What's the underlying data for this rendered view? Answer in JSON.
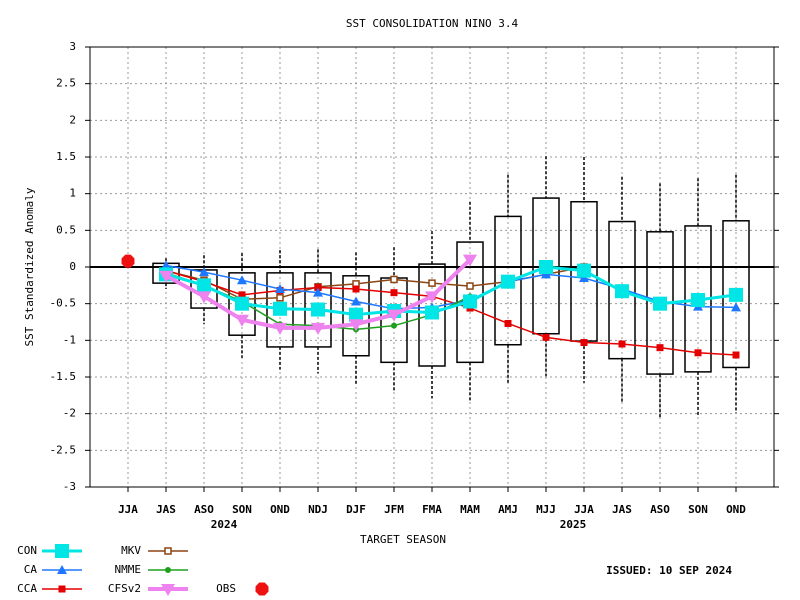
{
  "chart_data": {
    "type": "box_line",
    "title": "SST CONSOLIDATION NINO 3.4",
    "y_label": "SST Standardized Anomaly",
    "x_label": "TARGET SEASON",
    "annotations": [
      "2024",
      "2025"
    ],
    "issued": "ISSUED: 10 SEP 2024",
    "categories": [
      "JJA",
      "JAS",
      "ASO",
      "SON",
      "OND",
      "NDJ",
      "DJF",
      "JFM",
      "FMA",
      "MAM",
      "AMJ",
      "MJJ",
      "JJA",
      "JAS",
      "ASO",
      "SON",
      "OND"
    ],
    "ylim": [
      -3,
      3
    ],
    "yticks": [
      -3,
      -2.5,
      -2,
      -1.5,
      -1,
      -0.5,
      0,
      0.5,
      1,
      1.5,
      2,
      2.5,
      3
    ],
    "grid": true,
    "boxes": {
      "whisker_high": [
        null,
        0.12,
        0.16,
        0.19,
        0.23,
        0.24,
        0.2,
        0.27,
        0.49,
        0.89,
        1.26,
        1.51,
        1.5,
        1.23,
        1.14,
        1.21,
        1.26
      ],
      "box_high": [
        null,
        0.05,
        -0.04,
        -0.08,
        -0.08,
        -0.08,
        -0.12,
        -0.15,
        0.04,
        0.34,
        0.69,
        0.94,
        0.89,
        0.62,
        0.48,
        0.56,
        0.63
      ],
      "box_low": [
        null,
        -0.22,
        -0.56,
        -0.93,
        -1.09,
        -1.09,
        -1.21,
        -1.3,
        -1.35,
        -1.3,
        -1.06,
        -0.91,
        -1.01,
        -1.25,
        -1.46,
        -1.43,
        -1.37
      ],
      "whisker_low": [
        null,
        -0.3,
        -0.78,
        -1.24,
        -1.4,
        -1.45,
        -1.6,
        -1.7,
        -1.79,
        -1.84,
        -1.58,
        -1.49,
        -1.58,
        -1.86,
        -2.06,
        -2.02,
        -1.99
      ]
    },
    "series": [
      {
        "name": "CON",
        "color": "#00e5e5",
        "marker": "square",
        "values": [
          null,
          -0.1,
          -0.25,
          -0.5,
          -0.57,
          -0.58,
          -0.65,
          -0.6,
          -0.62,
          -0.47,
          -0.2,
          0,
          -0.05,
          -0.33,
          -0.5,
          -0.45,
          -0.38
        ]
      },
      {
        "name": "CA",
        "color": "#1e78ff",
        "marker": "triangle",
        "values": [
          null,
          0.02,
          -0.07,
          -0.18,
          -0.3,
          -0.35,
          -0.47,
          -0.57,
          -0.55,
          -0.45,
          -0.2,
          -0.1,
          -0.15,
          -0.3,
          -0.47,
          -0.54,
          -0.55
        ]
      },
      {
        "name": "CCA",
        "color": "#e50000",
        "marker": "dot",
        "values": [
          null,
          -0.05,
          -0.2,
          -0.38,
          -0.32,
          -0.28,
          -0.3,
          -0.35,
          -0.4,
          -0.56,
          -0.77,
          -0.96,
          -1.03,
          -1.05,
          -1.1,
          -1.17,
          -1.2
        ]
      },
      {
        "name": "MKV",
        "color": "#8b4513",
        "marker": "open-square",
        "values": [
          null,
          -0.05,
          -0.18,
          -0.44,
          -0.42,
          -0.27,
          -0.23,
          -0.17,
          -0.22,
          -0.26,
          -0.2,
          -0.1,
          0.0,
          null,
          null,
          null,
          null
        ]
      },
      {
        "name": "NMME",
        "color": "#1ea01e",
        "marker": "star",
        "values": [
          null,
          -0.08,
          -0.25,
          -0.47,
          -0.78,
          -0.8,
          -0.85,
          -0.8,
          -0.65,
          -0.4,
          null,
          null,
          null,
          null,
          null,
          null,
          null
        ]
      },
      {
        "name": "CFSv2",
        "color": "#ee82ee",
        "marker": "triangle-down",
        "values": [
          null,
          -0.12,
          -0.4,
          -0.72,
          -0.83,
          -0.83,
          -0.78,
          -0.65,
          -0.4,
          0.1,
          null,
          null,
          null,
          null,
          null,
          null,
          null
        ]
      },
      {
        "name": "OBS",
        "color": "#ee1111",
        "marker": "octagon",
        "values": [
          0.08,
          null,
          null,
          null,
          null,
          null,
          null,
          null,
          null,
          null,
          null,
          null,
          null,
          null,
          null,
          null,
          null
        ]
      }
    ]
  }
}
